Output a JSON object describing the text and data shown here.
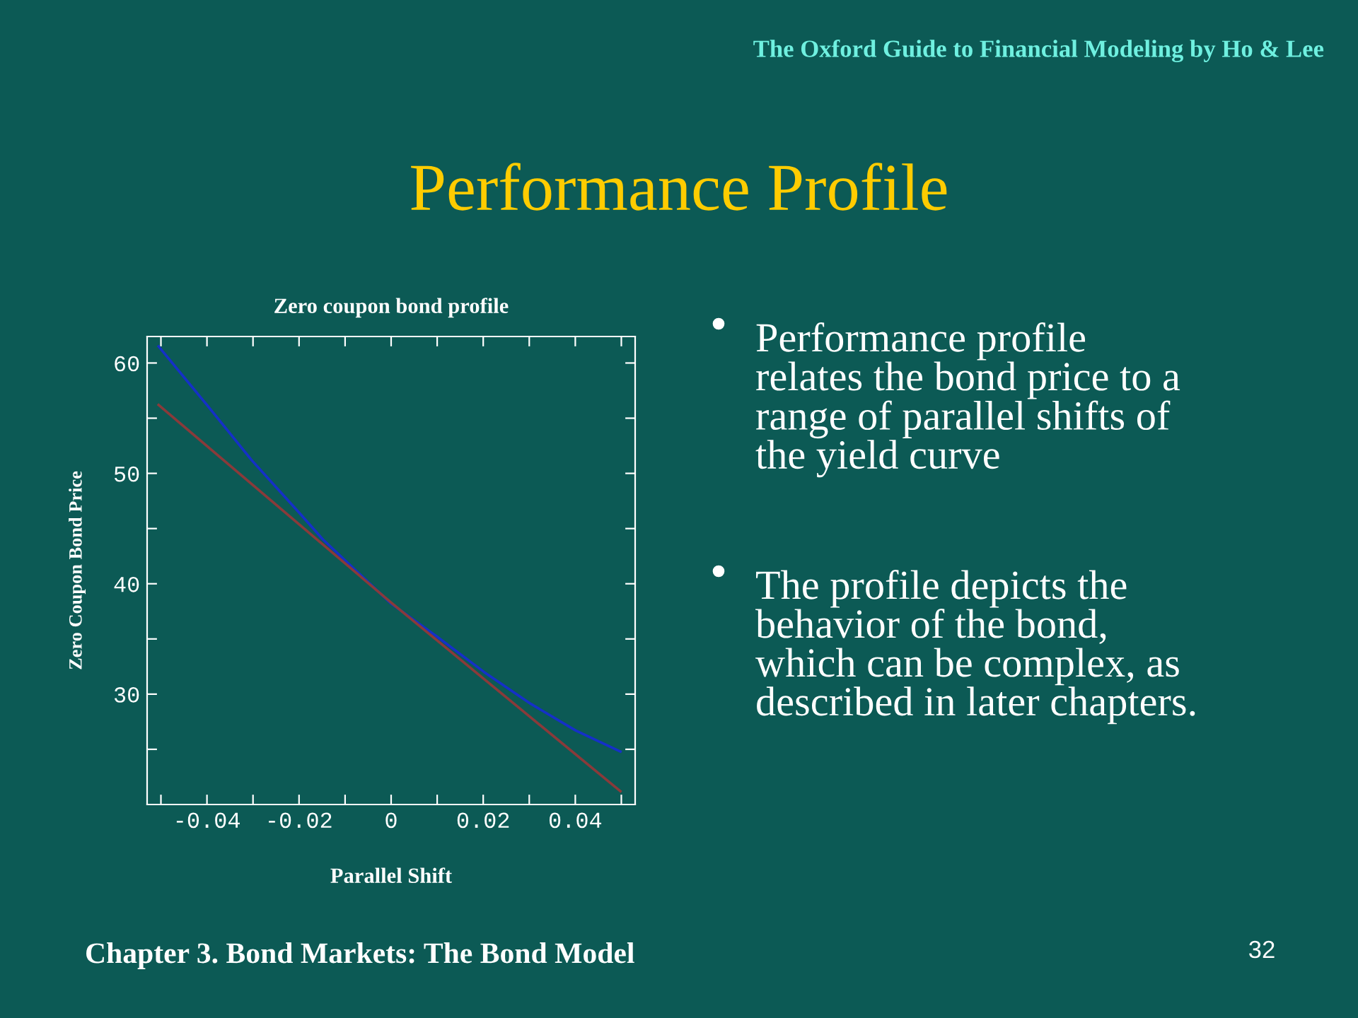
{
  "chart_data": {
    "type": "line",
    "title": "Zero coupon bond profile",
    "xlabel": "Parallel Shift",
    "ylabel": "Zero Coupon Bond Price",
    "xlim": [
      -0.053,
      0.053
    ],
    "ylim": [
      20,
      62.4
    ],
    "xticks": [
      {
        "value": -0.04,
        "label": "-0.04"
      },
      {
        "value": -0.02,
        "label": "-0.02"
      },
      0,
      0.02,
      0.04,
      {
        "value": -0.05,
        "label": null
      },
      {
        "value": -0.03,
        "label": null
      },
      {
        "value": -0.01,
        "label": null
      },
      {
        "value": 0.01,
        "label": null
      },
      {
        "value": 0.03,
        "label": null
      },
      {
        "value": 0.05,
        "label": null
      }
    ],
    "yticks": [
      30,
      40,
      50,
      60,
      {
        "value": 25,
        "label": null
      },
      {
        "value": 35,
        "label": null
      },
      {
        "value": 45,
        "label": null
      },
      {
        "value": 55,
        "label": null
      }
    ],
    "grid": false,
    "marker": "none",
    "line_style": "solid",
    "series": [
      {
        "color": "#1530c8",
        "x": [
          -0.0505,
          -0.04,
          -0.0303,
          -0.0199,
          -0.0148,
          0,
          0.01,
          0.0202,
          0.0304,
          0.0401,
          0.0498
        ],
        "values": [
          61.5,
          56.2,
          51.2,
          46.4,
          44.0,
          38.2,
          35.2,
          32.0,
          29.1,
          26.7,
          24.8
        ]
      },
      {
        "color": "#8a3a3a",
        "x": [
          -0.0505,
          0,
          0.0498
        ],
        "values": [
          56.2,
          38.3,
          21.2
        ]
      }
    ],
    "annotations": [
      "The Oxford Guide to Financial Modeling by Ho & Lee",
      "Performance Profile",
      "Performance profile\nrelates the bond price to a\nrange of parallel shifts of\nthe yield curve",
      "The profile depicts the\nbehavior of the bond,\nwhich can be complex, as\ndescribed in later chapters.",
      "Chapter 3. Bond Markets: The Bond Model",
      "32"
    ]
  }
}
